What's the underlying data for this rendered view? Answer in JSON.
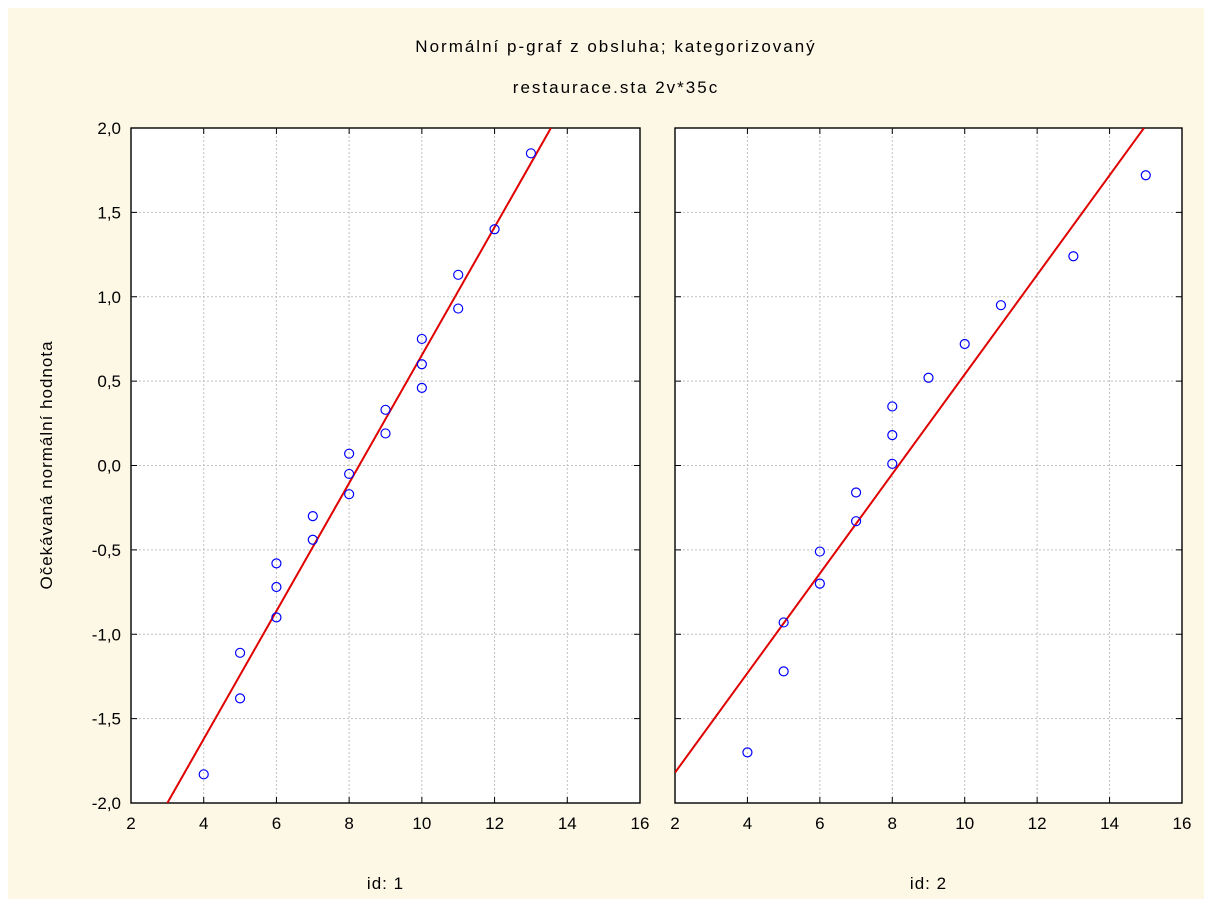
{
  "page": {
    "top_fragment": "",
    "background": "#fdf8e6"
  },
  "chart_data": {
    "type": "scatter",
    "title": "Normální p-graf z obsluha; kategorizovaný",
    "subtitle": "restaurace.sta 2v*35c",
    "ylabel": "Očekávaná normální hodnota",
    "xlim": [
      2,
      16
    ],
    "ylim": [
      -2,
      2
    ],
    "x_ticks": [
      "2",
      "4",
      "6",
      "8",
      "10",
      "12",
      "14",
      "16"
    ],
    "y_ticks": [
      "-2,0",
      "-1,5",
      "-1,0",
      "-0,5",
      "0,0",
      "0,5",
      "1,0",
      "1,5",
      "2,0"
    ],
    "x_tick_values": [
      2,
      4,
      6,
      8,
      10,
      12,
      14,
      16
    ],
    "y_tick_values": [
      -2,
      -1.5,
      -1,
      -0.5,
      0,
      0.5,
      1,
      1.5,
      2
    ],
    "grid": true,
    "point_color": "#0000ff",
    "line_color": "#e00000",
    "panels": [
      {
        "label": "id: 1",
        "points": [
          [
            4,
            -1.83
          ],
          [
            5,
            -1.38
          ],
          [
            5,
            -1.11
          ],
          [
            6,
            -0.9
          ],
          [
            6,
            -0.72
          ],
          [
            6,
            -0.58
          ],
          [
            7,
            -0.44
          ],
          [
            7,
            -0.3
          ],
          [
            8,
            -0.17
          ],
          [
            8,
            -0.05
          ],
          [
            8,
            0.07
          ],
          [
            9,
            0.19
          ],
          [
            9,
            0.33
          ],
          [
            10,
            0.46
          ],
          [
            10,
            0.6
          ],
          [
            10,
            0.75
          ],
          [
            11,
            0.93
          ],
          [
            11,
            1.13
          ],
          [
            12,
            1.4
          ],
          [
            13,
            1.85
          ]
        ],
        "fit_line": [
          [
            3,
            -2.0
          ],
          [
            13.55,
            2.0
          ]
        ]
      },
      {
        "label": "id: 2",
        "points": [
          [
            4,
            -1.7
          ],
          [
            5,
            -1.22
          ],
          [
            5,
            -0.93
          ],
          [
            6,
            -0.7
          ],
          [
            6,
            -0.51
          ],
          [
            7,
            -0.33
          ],
          [
            7,
            -0.16
          ],
          [
            8,
            0.01
          ],
          [
            8,
            0.18
          ],
          [
            8,
            0.35
          ],
          [
            9,
            0.52
          ],
          [
            10,
            0.72
          ],
          [
            11,
            0.95
          ],
          [
            13,
            1.24
          ],
          [
            15,
            1.72
          ]
        ],
        "fit_line": [
          [
            2,
            -1.82
          ],
          [
            14.95,
            2.0
          ]
        ]
      }
    ]
  }
}
